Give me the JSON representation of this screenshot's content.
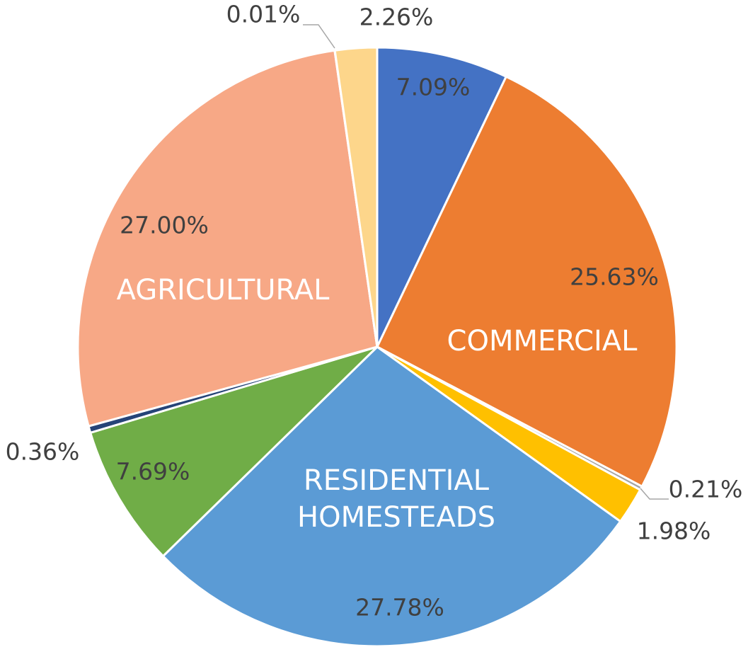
{
  "chart_data": {
    "type": "pie",
    "categories": [
      null,
      "COMMERCIAL",
      null,
      null,
      "RESIDENTIAL HOMESTEADS",
      null,
      null,
      "AGRICULTURAL",
      null,
      null
    ],
    "values": [
      7.09,
      25.63,
      0.21,
      1.98,
      27.78,
      7.69,
      0.36,
      27.0,
      0.01,
      2.26
    ],
    "value_labels": [
      "7.09%",
      "25.63%",
      "0.21%",
      "1.98%",
      "27.78%",
      "7.69%",
      "0.36%",
      "27.00%",
      "0.01%",
      "2.26%"
    ],
    "colors": [
      "#4472c4",
      "#ed7d31",
      "#a5a5a5",
      "#ffc000",
      "#5b9bd5",
      "#70ad47",
      "#264478",
      "#f7a886",
      "#997300",
      "#fdd68b"
    ]
  }
}
